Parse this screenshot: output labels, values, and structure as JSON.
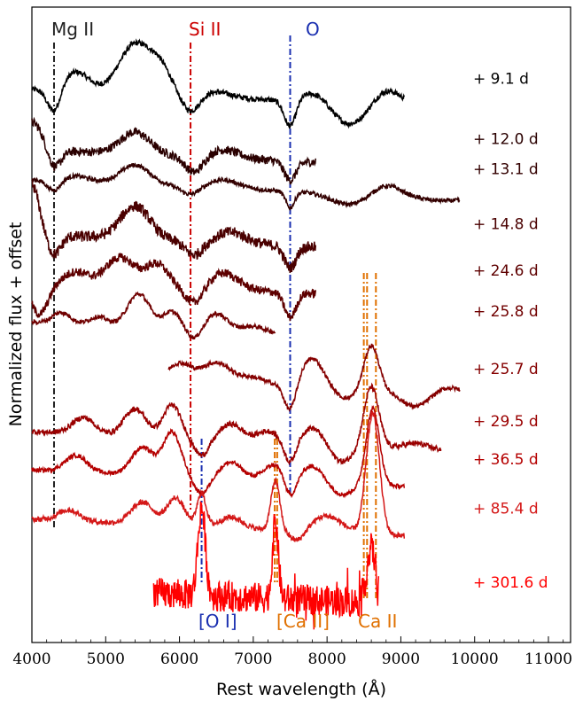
{
  "chart_data": {
    "type": "line",
    "xlabel": "Rest wavelength (Å)",
    "ylabel": "Normalized flux + offset",
    "xlim": [
      4000,
      11300
    ],
    "xticks": [
      4000,
      5000,
      6000,
      7000,
      8000,
      9000,
      10000,
      11000
    ],
    "xtick_labels": [
      "4000",
      "5000",
      "6000",
      "7000",
      "8000",
      "9000",
      "10000",
      "11000"
    ],
    "yticks": false,
    "grid": false,
    "legend": "none",
    "series": [
      {
        "epoch": "+ 9.1 d",
        "color": "#000000",
        "x_range": [
          4000,
          9050
        ],
        "offset": 9.6,
        "noise": 0.05,
        "features": [
          [
            4300,
            -0.45,
            90
          ],
          [
            4600,
            0.35,
            180
          ],
          [
            5400,
            0.9,
            220
          ],
          [
            5750,
            0.4,
            150
          ],
          [
            6150,
            -0.3,
            120
          ],
          [
            6500,
            0.1,
            200
          ],
          [
            7500,
            -0.5,
            80
          ],
          [
            7850,
            0.2,
            200
          ],
          [
            8300,
            -0.4,
            250
          ],
          [
            8800,
            0.3,
            200
          ]
        ]
      },
      {
        "epoch": "+ 12.0 d",
        "color": "#2a0000",
        "x_range": [
          4000,
          7850
        ],
        "offset": 8.5,
        "noise": 0.08,
        "features": [
          [
            4000,
            0.5,
            150
          ],
          [
            4300,
            -0.35,
            90
          ],
          [
            5400,
            0.4,
            200
          ],
          [
            6200,
            -0.3,
            120
          ],
          [
            6600,
            0.15,
            200
          ],
          [
            7500,
            -0.35,
            80
          ]
        ]
      },
      {
        "epoch": "+ 13.1 d",
        "color": "#330000",
        "x_range": [
          4000,
          9800
        ],
        "offset": 7.95,
        "noise": 0.04,
        "features": [
          [
            4300,
            -0.2,
            90
          ],
          [
            4600,
            0.1,
            180
          ],
          [
            5400,
            0.35,
            200
          ],
          [
            6150,
            -0.15,
            120
          ],
          [
            6600,
            0.15,
            200
          ],
          [
            7500,
            -0.3,
            60
          ],
          [
            8300,
            -0.2,
            250
          ],
          [
            8800,
            0.2,
            200
          ],
          [
            9500,
            -0.05,
            300
          ]
        ]
      },
      {
        "epoch": "+ 14.8 d",
        "color": "#4a0000",
        "x_range": [
          4000,
          7850
        ],
        "offset": 6.95,
        "noise": 0.1,
        "features": [
          [
            4000,
            0.9,
            100
          ],
          [
            4300,
            -0.35,
            90
          ],
          [
            5400,
            0.6,
            200
          ],
          [
            6200,
            -0.25,
            120
          ],
          [
            6700,
            0.2,
            200
          ],
          [
            7500,
            -0.4,
            80
          ]
        ]
      },
      {
        "epoch": "+ 24.6 d",
        "color": "#5e0000",
        "x_range": [
          4000,
          7850
        ],
        "offset": 6.1,
        "noise": 0.08,
        "features": [
          [
            4100,
            -0.6,
            120
          ],
          [
            4600,
            0.2,
            150
          ],
          [
            5200,
            0.5,
            200
          ],
          [
            5700,
            0.4,
            150
          ],
          [
            6200,
            -0.3,
            120
          ],
          [
            6600,
            0.3,
            200
          ],
          [
            7500,
            -0.45,
            80
          ]
        ]
      },
      {
        "epoch": "+ 25.8 d",
        "color": "#700000",
        "x_range": [
          4000,
          7300
        ],
        "offset": 5.35,
        "noise": 0.04,
        "features": [
          [
            4400,
            0.2,
            120
          ],
          [
            4900,
            0.15,
            120
          ],
          [
            5450,
            0.6,
            150
          ],
          [
            5900,
            0.3,
            120
          ],
          [
            6200,
            -0.2,
            100
          ],
          [
            6500,
            0.3,
            150
          ],
          [
            7000,
            0.1,
            150
          ]
        ]
      },
      {
        "epoch": "+ 25.7 d",
        "color": "#850000",
        "x_range": [
          5850,
          9800
        ],
        "offset": 4.3,
        "noise": 0.04,
        "features": [
          [
            6000,
            0.3,
            150
          ],
          [
            6500,
            0.35,
            200
          ],
          [
            7000,
            0.1,
            150
          ],
          [
            7500,
            -0.5,
            80
          ],
          [
            7800,
            0.5,
            150
          ],
          [
            8250,
            -0.2,
            150
          ],
          [
            8600,
            0.8,
            100
          ],
          [
            9200,
            -0.3,
            200
          ],
          [
            9600,
            0.1,
            200
          ]
        ]
      },
      {
        "epoch": "+ 29.5 d",
        "color": "#9a0000",
        "x_range": [
          4000,
          9550
        ],
        "offset": 3.35,
        "noise": 0.05,
        "features": [
          [
            4700,
            0.3,
            150
          ],
          [
            5400,
            0.5,
            150
          ],
          [
            5900,
            0.6,
            120
          ],
          [
            6300,
            -0.3,
            100
          ],
          [
            6700,
            0.3,
            150
          ],
          [
            7200,
            0.2,
            150
          ],
          [
            7500,
            -0.4,
            80
          ],
          [
            7800,
            0.3,
            150
          ],
          [
            8200,
            -0.3,
            150
          ],
          [
            8600,
            1.1,
            100
          ],
          [
            9200,
            0.1,
            150
          ]
        ]
      },
      {
        "epoch": "+ 36.5 d",
        "color": "#b50000",
        "x_range": [
          4000,
          9050
        ],
        "offset": 2.65,
        "noise": 0.04,
        "features": [
          [
            4600,
            0.3,
            150
          ],
          [
            5500,
            0.5,
            150
          ],
          [
            5900,
            0.8,
            120
          ],
          [
            6300,
            -0.3,
            100
          ],
          [
            6700,
            0.3,
            150
          ],
          [
            7300,
            0.3,
            150
          ],
          [
            7500,
            -0.4,
            80
          ],
          [
            7800,
            0.3,
            150
          ],
          [
            8200,
            -0.2,
            150
          ],
          [
            8620,
            1.4,
            90
          ]
        ]
      },
      {
        "epoch": "+ 85.4 d",
        "color": "#d41818",
        "x_range": [
          4000,
          9050
        ],
        "offset": 1.75,
        "noise": 0.05,
        "features": [
          [
            4500,
            0.2,
            150
          ],
          [
            5500,
            0.4,
            150
          ],
          [
            5950,
            0.5,
            120
          ],
          [
            6300,
            0.6,
            60
          ],
          [
            6700,
            0.2,
            150
          ],
          [
            7300,
            0.9,
            60
          ],
          [
            7600,
            -0.2,
            100
          ],
          [
            8000,
            0.3,
            200
          ],
          [
            8620,
            2.2,
            90
          ]
        ]
      },
      {
        "epoch": "+ 301.6 d",
        "color": "#ff0000",
        "x_range": [
          5650,
          8700
        ],
        "offset": 0.4,
        "noise": 0.28,
        "features": [
          [
            6300,
            1.6,
            50
          ],
          [
            7300,
            1.4,
            40
          ],
          [
            8600,
            1.0,
            60
          ]
        ]
      }
    ],
    "line_markers": [
      {
        "name": "Mg II",
        "color": "#222222",
        "x": [
          4300
        ],
        "style": "dashdot"
      },
      {
        "name": "Si II",
        "color": "#cc0000",
        "x": [
          6150
        ],
        "style": "dashdot"
      },
      {
        "name": "O",
        "color": "#1a2fb0",
        "x": [
          7500
        ],
        "style": "dashdot"
      },
      {
        "name": "[O I]",
        "color": "#1a2fb0",
        "x": [
          6300
        ],
        "style": "dashdot"
      },
      {
        "name": "[Ca II]",
        "color": "#e07000",
        "x": [
          7291,
          7324
        ],
        "style": "dashdot"
      },
      {
        "name": "Ca II",
        "color": "#e07000",
        "x": [
          8498,
          8542,
          8662
        ],
        "style": "dashdot"
      }
    ]
  }
}
